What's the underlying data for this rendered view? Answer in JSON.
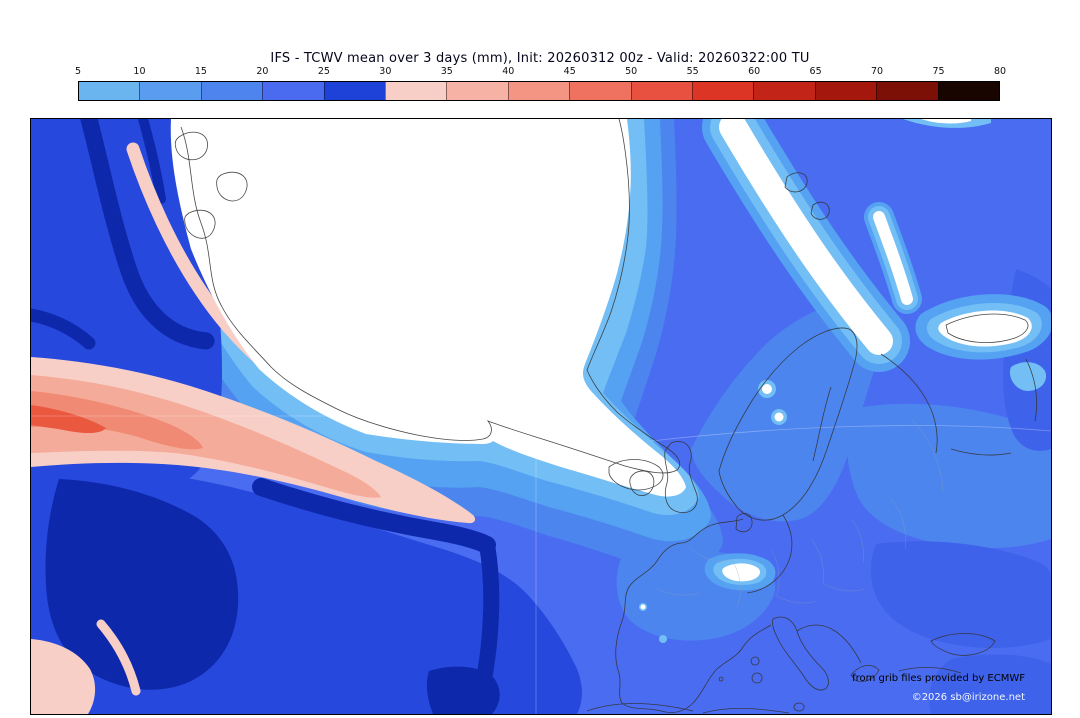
{
  "header": {
    "title": "IFS - TCWV mean over 3 days (mm), Init: 20260312 00z - Valid: 20260322:00 TU"
  },
  "colorbar": {
    "ticks": [
      "5",
      "10",
      "15",
      "20",
      "25",
      "30",
      "35",
      "40",
      "45",
      "50",
      "55",
      "60",
      "65",
      "70",
      "75",
      "80"
    ],
    "cell_colors": [
      "#6ab5f0",
      "#5a9cf0",
      "#4d84ee",
      "#4a6bf0",
      "#1e42d8",
      "#f8cfc7",
      "#f6b2a4",
      "#f49483",
      "#ef7260",
      "#e85140",
      "#dc3525",
      "#c22517",
      "#a4170c",
      "#7c0f06",
      "#190500"
    ]
  },
  "map": {
    "colors": {
      "white": "#ffffff",
      "pale_blue": "#72bef5",
      "light_blue": "#55a2f2",
      "medium_blue": "#4d85ef",
      "royal_blue": "#4a6cf1",
      "dark_blue": "#2648dc",
      "subtle_dark": "#3e62ea",
      "navy": "#0e28ac",
      "pale_pink": "#f7cfc7",
      "salmon": "#f5ab99",
      "coral": "#f08a74",
      "red": "#e9583f",
      "coast": "#333333",
      "border_gray": "#90a0b4",
      "grid": "#ffffff"
    },
    "credits": {
      "line1": "from grib files provided by ECMWF",
      "line2": "©2026 sb@irizone.net"
    }
  }
}
